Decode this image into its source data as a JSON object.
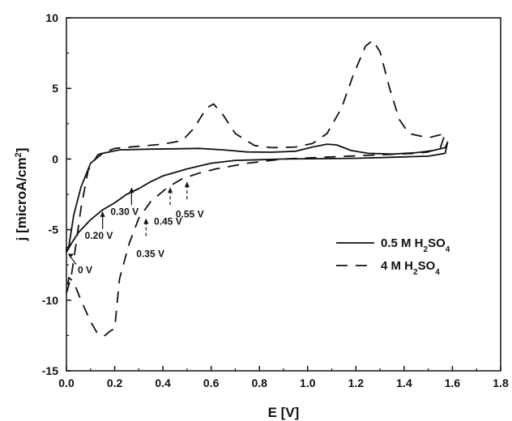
{
  "chart_data": {
    "type": "line",
    "xlabel": "E [V]",
    "ylabel": "j [microA/cm2]",
    "xlim": [
      0.0,
      1.8
    ],
    "ylim": [
      -15,
      10
    ],
    "x_ticks": [
      "0.0",
      "0.2",
      "0.4",
      "0.6",
      "0.8",
      "1.0",
      "1.2",
      "1.4",
      "1.6",
      "1.8"
    ],
    "y_ticks": [
      "-15",
      "-10",
      "-5",
      "0",
      "5",
      "10"
    ],
    "grid": false,
    "legend_position": "right",
    "series": [
      {
        "name": "0.5 M H2SO4",
        "style": "solid",
        "points": [
          [
            0.01,
            -6.2
          ],
          [
            0.03,
            -4.0
          ],
          [
            0.06,
            -2.0
          ],
          [
            0.1,
            -0.3
          ],
          [
            0.15,
            0.4
          ],
          [
            0.22,
            0.65
          ],
          [
            0.35,
            0.7
          ],
          [
            0.45,
            0.72
          ],
          [
            0.55,
            0.75
          ],
          [
            0.65,
            0.65
          ],
          [
            0.75,
            0.5
          ],
          [
            0.85,
            0.48
          ],
          [
            0.95,
            0.55
          ],
          [
            1.02,
            0.85
          ],
          [
            1.08,
            1.05
          ],
          [
            1.12,
            1.0
          ],
          [
            1.18,
            0.6
          ],
          [
            1.25,
            0.4
          ],
          [
            1.35,
            0.35
          ],
          [
            1.45,
            0.45
          ],
          [
            1.52,
            0.6
          ],
          [
            1.57,
            0.8
          ],
          [
            1.58,
            1.2
          ],
          [
            1.57,
            0.4
          ],
          [
            1.5,
            0.2
          ],
          [
            1.4,
            0.15
          ],
          [
            1.3,
            0.1
          ],
          [
            1.2,
            0.05
          ],
          [
            1.1,
            0.03
          ],
          [
            1.0,
            0.02
          ],
          [
            0.9,
            0.0
          ],
          [
            0.8,
            -0.05
          ],
          [
            0.7,
            -0.1
          ],
          [
            0.6,
            -0.3
          ],
          [
            0.5,
            -0.7
          ],
          [
            0.45,
            -0.95
          ],
          [
            0.4,
            -1.2
          ],
          [
            0.35,
            -1.6
          ],
          [
            0.3,
            -2.1
          ],
          [
            0.25,
            -2.5
          ],
          [
            0.2,
            -3.1
          ],
          [
            0.15,
            -3.6
          ],
          [
            0.1,
            -4.3
          ],
          [
            0.05,
            -5.2
          ],
          [
            0.02,
            -6.0
          ],
          [
            0.0,
            -6.6
          ],
          [
            0.0,
            -6.3
          ],
          [
            0.01,
            -6.2
          ]
        ]
      },
      {
        "name": "4 M H2SO4",
        "style": "dashed",
        "points": [
          [
            0.0,
            -9.5
          ],
          [
            0.02,
            -8.3
          ],
          [
            0.04,
            -6.0
          ],
          [
            0.06,
            -3.5
          ],
          [
            0.09,
            -0.8
          ],
          [
            0.13,
            0.3
          ],
          [
            0.2,
            0.75
          ],
          [
            0.3,
            0.9
          ],
          [
            0.4,
            1.05
          ],
          [
            0.48,
            1.3
          ],
          [
            0.53,
            2.2
          ],
          [
            0.58,
            3.6
          ],
          [
            0.61,
            3.9
          ],
          [
            0.65,
            3.1
          ],
          [
            0.7,
            1.8
          ],
          [
            0.78,
            0.95
          ],
          [
            0.85,
            0.8
          ],
          [
            0.95,
            0.85
          ],
          [
            1.02,
            1.1
          ],
          [
            1.08,
            1.8
          ],
          [
            1.14,
            3.6
          ],
          [
            1.19,
            6.0
          ],
          [
            1.24,
            8.0
          ],
          [
            1.27,
            8.4
          ],
          [
            1.3,
            7.6
          ],
          [
            1.34,
            5.0
          ],
          [
            1.38,
            2.8
          ],
          [
            1.42,
            1.8
          ],
          [
            1.5,
            1.5
          ],
          [
            1.57,
            1.8
          ],
          [
            1.55,
            0.8
          ],
          [
            1.5,
            0.5
          ],
          [
            1.45,
            0.4
          ],
          [
            1.3,
            0.3
          ],
          [
            1.1,
            0.15
          ],
          [
            0.9,
            0.0
          ],
          [
            0.75,
            -0.3
          ],
          [
            0.62,
            -0.7
          ],
          [
            0.55,
            -1.0
          ],
          [
            0.48,
            -1.4
          ],
          [
            0.42,
            -2.0
          ],
          [
            0.35,
            -3.0
          ],
          [
            0.3,
            -4.2
          ],
          [
            0.26,
            -6.0
          ],
          [
            0.22,
            -8.5
          ],
          [
            0.2,
            -12.0
          ],
          [
            0.18,
            -12.2
          ],
          [
            0.16,
            -12.5
          ],
          [
            0.13,
            -12.4
          ],
          [
            0.1,
            -11.5
          ],
          [
            0.06,
            -10.0
          ],
          [
            0.03,
            -8.7
          ],
          [
            0.01,
            -8.4
          ],
          [
            0.0,
            -9.5
          ]
        ]
      }
    ],
    "legend": [
      {
        "prefix": "0.5 M H",
        "sub": "2",
        "middle": "SO",
        "sub2": "4",
        "style": "solid"
      },
      {
        "prefix": "4 M H",
        "sub": "2",
        "middle": "SO",
        "sub2": "4",
        "style": "dashed"
      }
    ],
    "annotations": [
      {
        "label": "0 V",
        "at": [
          0.0,
          -6.6
        ]
      },
      {
        "label": "0.20 V",
        "at": [
          0.15,
          -3.7
        ]
      },
      {
        "label": "0.30 V",
        "at": [
          0.27,
          -2.0
        ]
      },
      {
        "label": "0.35 V",
        "at": [
          0.33,
          -4.2
        ]
      },
      {
        "label": "0.45 V",
        "at": [
          0.43,
          -2.0
        ]
      },
      {
        "label": "0.55 V",
        "at": [
          0.5,
          -1.6
        ]
      }
    ]
  }
}
